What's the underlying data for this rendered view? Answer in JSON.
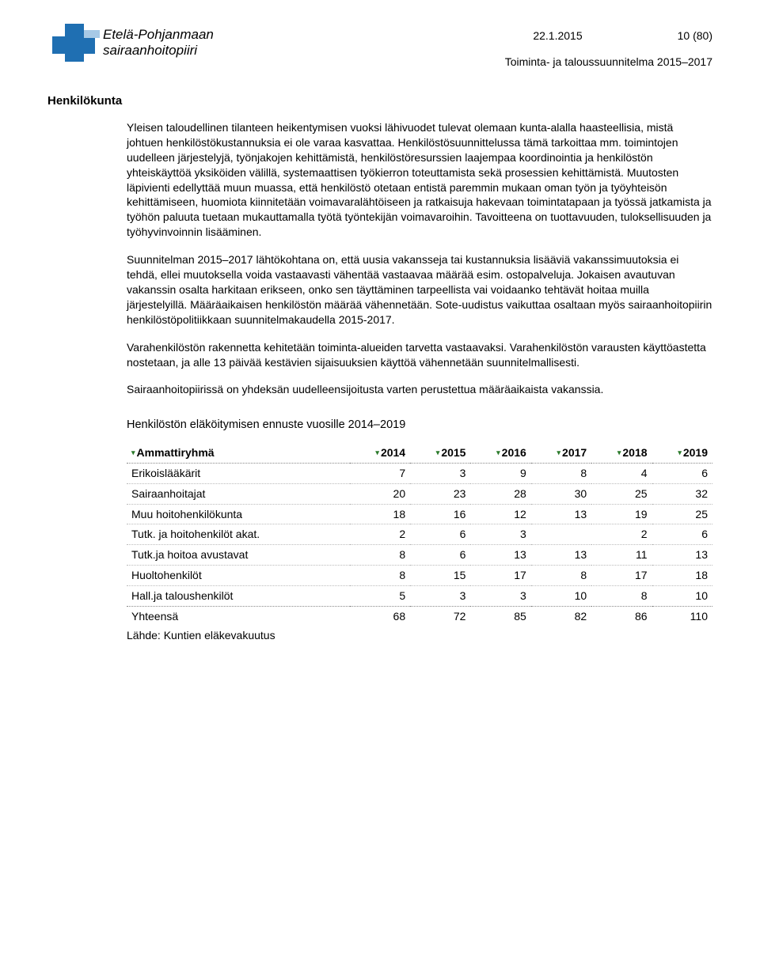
{
  "header": {
    "org_line1": "Etelä-Pohjanmaan",
    "org_line2": "sairaanhoitopiiri",
    "date": "22.1.2015",
    "page_label": "10 (80)",
    "doc_title": "Toiminta- ja taloussuunnitelma 2015–2017"
  },
  "section_title": "Henkilökunta",
  "paragraphs": [
    "Yleisen taloudellinen tilanteen heikentymisen vuoksi lähivuodet tulevat olemaan kunta-alalla haasteellisia, mistä johtuen henkilöstökustannuksia ei ole varaa kasvattaa. Henkilöstösuunnittelussa tämä tarkoittaa mm. toimintojen uudelleen järjestelyjä, työnjakojen kehittämistä, henkilöstöresurssien laajempaa koordinointia ja henkilöstön yhteiskäyttöä yksiköiden välillä, systemaattisen työkierron toteuttamista sekä prosessien kehittämistä. Muutosten läpivienti edellyttää muun muassa, että henkilöstö otetaan entistä paremmin mukaan oman työn ja työyhteisön kehittämiseen, huomiota kiinnitetään voimavaralähtöiseen ja ratkaisuja hakevaan toimintatapaan ja työssä jatkamista ja työhön paluuta tuetaan mukauttamalla työtä työntekijän voimavaroihin. Tavoitteena on tuottavuuden, tuloksellisuuden ja työhyvinvoinnin lisääminen.",
    "Suunnitelman 2015–2017 lähtökohtana on, että uusia vakansseja tai kustannuksia lisääviä vakanssimuutoksia ei tehdä, ellei muutoksella voida vastaavasti vähentää vastaavaa määrää esim. ostopalveluja. Jokaisen avautuvan vakanssin osalta harkitaan erikseen, onko sen täyttäminen tarpeellista vai voidaanko tehtävät hoitaa muilla järjestelyillä. Määräaikaisen henkilöstön määrää vähennetään. Sote-uudistus vaikuttaa osaltaan myös sairaanhoitopiirin henkilöstöpolitiikkaan suunnitelmakaudella 2015-2017.",
    "Varahenkilöstön rakennetta kehitetään toiminta-alueiden tarvetta vastaavaksi. Varahenkilöstön varausten käyttöastetta nostetaan, ja alle 13 päivää kestävien sijaisuuksien käyttöä vähennetään suunnitelmallisesti.",
    "Sairaanhoitopiirissä on yhdeksän uudelleensijoitusta varten perustettua määräaikaista vakanssia."
  ],
  "table": {
    "title": "Henkilöstön eläköitymisen ennuste vuosille 2014–2019",
    "header_label": "Ammattiryhmä",
    "years": [
      "2014",
      "2015",
      "2016",
      "2017",
      "2018",
      "2019"
    ],
    "rows": [
      {
        "label": "Erikoislääkärit",
        "v": [
          "7",
          "3",
          "9",
          "8",
          "4",
          "6"
        ]
      },
      {
        "label": "Sairaanhoitajat",
        "v": [
          "20",
          "23",
          "28",
          "30",
          "25",
          "32"
        ]
      },
      {
        "label": "Muu hoitohenkilökunta",
        "v": [
          "18",
          "16",
          "12",
          "13",
          "19",
          "25"
        ]
      },
      {
        "label": "Tutk. ja hoitohenkilöt akat.",
        "v": [
          "2",
          "6",
          "3",
          "",
          "2",
          "6"
        ]
      },
      {
        "label": "Tutk.ja hoitoa avustavat",
        "v": [
          "8",
          "6",
          "13",
          "13",
          "11",
          "13"
        ]
      },
      {
        "label": "Huoltohenkilöt",
        "v": [
          "8",
          "15",
          "17",
          "8",
          "17",
          "18"
        ]
      },
      {
        "label": "Hall.ja taloushenkilöt",
        "v": [
          "5",
          "3",
          "3",
          "10",
          "8",
          "10"
        ]
      }
    ],
    "footer_label": "Yhteensä",
    "footer_values": [
      "68",
      "72",
      "85",
      "82",
      "86",
      "110"
    ],
    "source": "Lähde: Kuntien eläkevakuutus"
  },
  "colors": {
    "logo_primary": "#1f6fb2",
    "logo_accent": "#a7c9e6",
    "tick": "#2a7a2a",
    "border": "#888888"
  }
}
